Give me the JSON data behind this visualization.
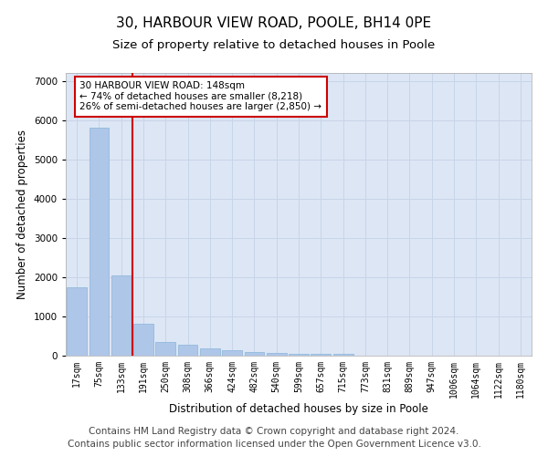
{
  "title1": "30, HARBOUR VIEW ROAD, POOLE, BH14 0PE",
  "title2": "Size of property relative to detached houses in Poole",
  "xlabel": "Distribution of detached houses by size in Poole",
  "ylabel": "Number of detached properties",
  "categories": [
    "17sqm",
    "75sqm",
    "133sqm",
    "191sqm",
    "250sqm",
    "308sqm",
    "366sqm",
    "424sqm",
    "482sqm",
    "540sqm",
    "599sqm",
    "657sqm",
    "715sqm",
    "773sqm",
    "831sqm",
    "889sqm",
    "947sqm",
    "1006sqm",
    "1064sqm",
    "1122sqm",
    "1180sqm"
  ],
  "values": [
    1750,
    5800,
    2050,
    820,
    350,
    290,
    180,
    130,
    95,
    75,
    55,
    40,
    35,
    0,
    0,
    0,
    0,
    0,
    0,
    0,
    0
  ],
  "bar_color": "#aec6e8",
  "bar_edge_color": "#8ab4d8",
  "vline_x_index": 2.5,
  "vline_color": "#cc0000",
  "annotation_text": "30 HARBOUR VIEW ROAD: 148sqm\n← 74% of detached houses are smaller (8,218)\n26% of semi-detached houses are larger (2,850) →",
  "annotation_box_color": "#ffffff",
  "annotation_box_edge_color": "#cc0000",
  "grid_color": "#c8d4e8",
  "plot_background_color": "#dce6f5",
  "footer1": "Contains HM Land Registry data © Crown copyright and database right 2024.",
  "footer2": "Contains public sector information licensed under the Open Government Licence v3.0.",
  "ylim": [
    0,
    7200
  ],
  "yticks": [
    0,
    1000,
    2000,
    3000,
    4000,
    5000,
    6000,
    7000
  ],
  "title_fontsize": 11,
  "subtitle_fontsize": 9.5,
  "axis_label_fontsize": 8.5,
  "tick_fontsize": 7,
  "annotation_fontsize": 7.5,
  "footer_fontsize": 7.5
}
